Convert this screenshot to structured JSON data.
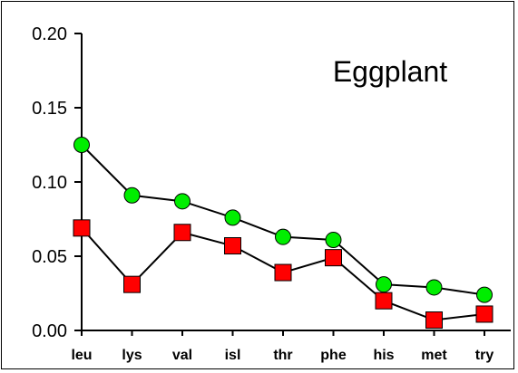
{
  "chart_data": {
    "type": "line",
    "title": "Eggplant",
    "xlabel": "",
    "ylabel": "",
    "categories": [
      "leu",
      "lys",
      "val",
      "isl",
      "thr",
      "phe",
      "his",
      "met",
      "try"
    ],
    "ylim": [
      0,
      0.2
    ],
    "yticks": [
      "0.00",
      "0.05",
      "0.10",
      "0.15",
      "0.20"
    ],
    "grid": false,
    "legend": "none",
    "series": [
      {
        "marker": "circle",
        "color": "#00ee00",
        "values": [
          0.125,
          0.091,
          0.087,
          0.076,
          0.063,
          0.061,
          0.031,
          0.029,
          0.024
        ]
      },
      {
        "marker": "square",
        "color": "#ff0000",
        "values": [
          0.069,
          0.031,
          0.066,
          0.057,
          0.039,
          0.049,
          0.02,
          0.007,
          0.011
        ]
      }
    ]
  }
}
